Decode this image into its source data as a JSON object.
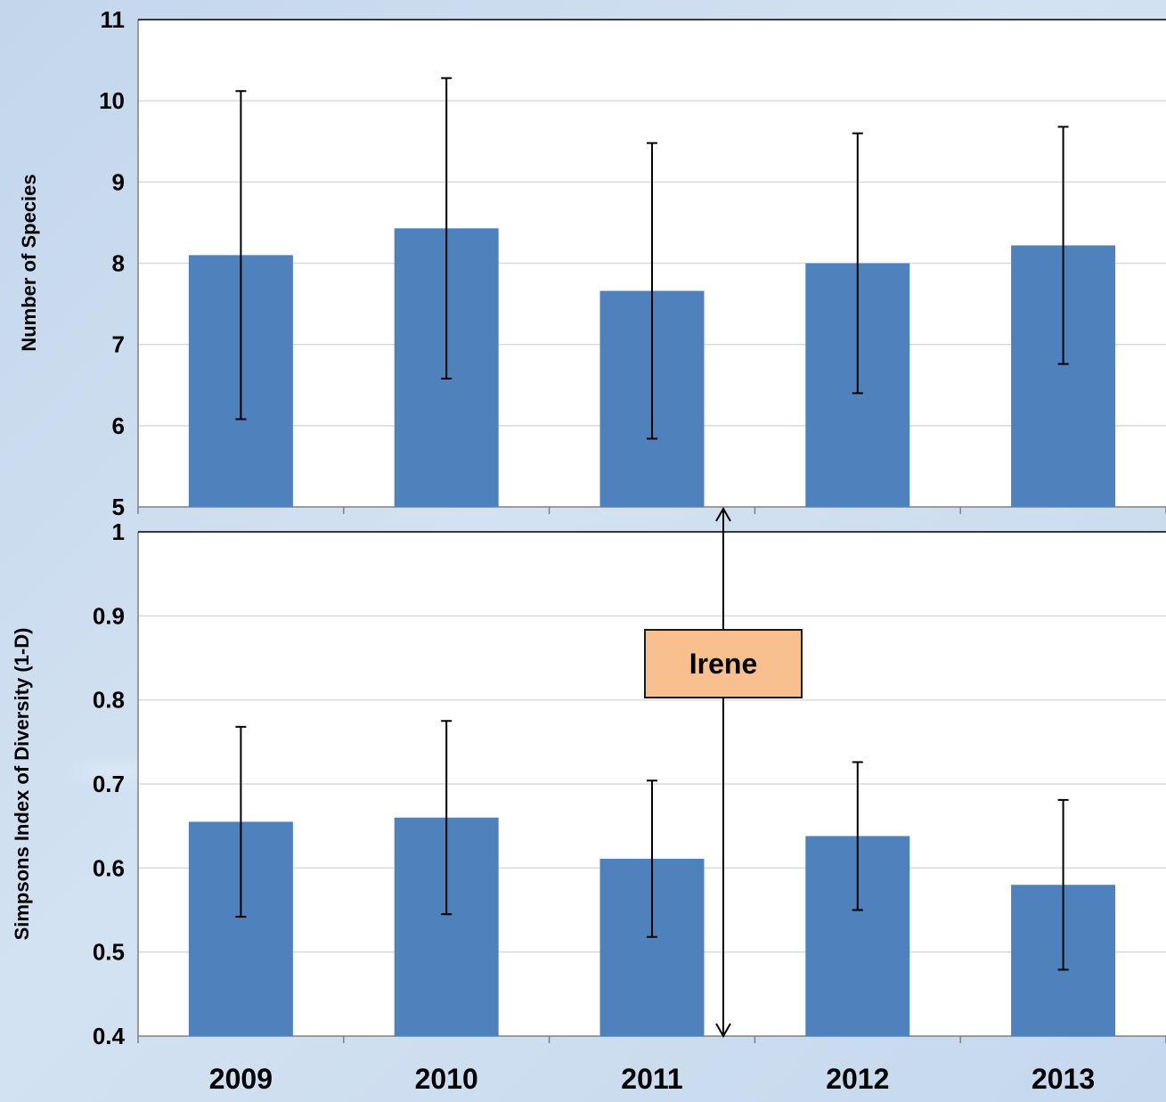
{
  "chart_data": [
    {
      "type": "bar",
      "categories": [
        "2009",
        "2010",
        "2011",
        "2012",
        "2013"
      ],
      "values": [
        8.1,
        8.43,
        7.66,
        8.0,
        8.22
      ],
      "error": [
        2.02,
        1.85,
        1.82,
        1.6,
        1.46
      ],
      "ylabel": "Number of Species",
      "ylim": [
        5,
        11
      ],
      "yticks": [
        "5",
        "6",
        "7",
        "8",
        "9",
        "10",
        "11"
      ],
      "grid": true,
      "bar_color": "#4f81bd"
    },
    {
      "type": "bar",
      "categories": [
        "2009",
        "2010",
        "2011",
        "2012",
        "2013"
      ],
      "values": [
        0.655,
        0.66,
        0.611,
        0.638,
        0.58
      ],
      "error": [
        0.113,
        0.115,
        0.093,
        0.088,
        0.101
      ],
      "ylabel": "Simpsons Index of Diversity (1-D)",
      "ylim": [
        0.4,
        1
      ],
      "yticks": [
        "0.4",
        "0.5",
        "0.6",
        "0.7",
        "0.8",
        "0.9",
        "1"
      ],
      "grid": true,
      "bar_color": "#4f81bd"
    }
  ],
  "annotation": {
    "label": "Irene",
    "color": "#f9c08f"
  }
}
